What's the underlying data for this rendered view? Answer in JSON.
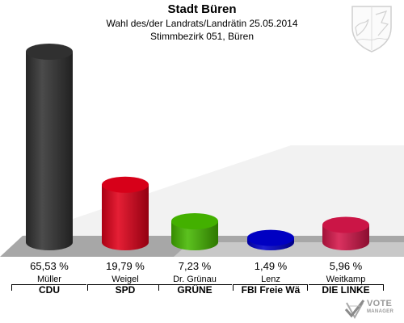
{
  "header": {
    "title": "Stadt Büren",
    "subtitle1": "Wahl des/der Landrats/Landrätin 25.05.2014",
    "subtitle2": "Stimmbezirk 051, Büren"
  },
  "logo": {
    "text": "VOTE",
    "sub": "MANAGER"
  },
  "chart_data": {
    "type": "bar",
    "title": "Stadt Büren",
    "categories": [
      "CDU",
      "SPD",
      "GRÜNE",
      "FBI Freie Wä",
      "DIE LINKE"
    ],
    "candidates": [
      "Müller",
      "Weigel",
      "Dr. Grünau",
      "Lenz",
      "Weitkamp"
    ],
    "value_labels": [
      "65,53 %",
      "19,79 %",
      "7,23 %",
      "1,49 %",
      "5,96 %"
    ],
    "values": [
      65.53,
      19.79,
      7.23,
      1.49,
      5.96
    ],
    "colors": [
      "#333333",
      "#e2001a",
      "#46b900",
      "#0000cc",
      "#d6164a"
    ],
    "ylim": [
      0,
      70
    ],
    "grid": false
  }
}
